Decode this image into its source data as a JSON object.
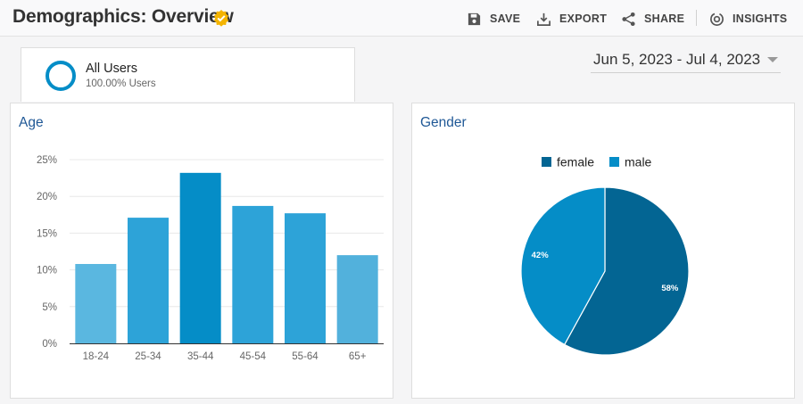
{
  "header": {
    "title": "Demographics: Overview",
    "tools": [
      {
        "label": "SAVE",
        "icon": "save-icon"
      },
      {
        "label": "EXPORT",
        "icon": "export-icon"
      },
      {
        "label": "SHARE",
        "icon": "share-icon"
      },
      {
        "label": "INSIGHTS",
        "icon": "insights-icon"
      }
    ]
  },
  "segment": {
    "name": "All Users",
    "percent": "100.00% Users",
    "color": "#058dc7"
  },
  "date_range": "Jun 5, 2023 - Jul 4, 2023",
  "age_panel": {
    "title": "Age"
  },
  "gender_panel": {
    "title": "Gender"
  },
  "chart_data": [
    {
      "type": "bar",
      "title": "Age",
      "categories": [
        "18-24",
        "25-34",
        "35-44",
        "45-54",
        "55-64",
        "65+"
      ],
      "values": [
        10.8,
        17.1,
        23.2,
        18.7,
        17.7,
        12.0
      ],
      "y_ticks": [
        "0%",
        "5%",
        "10%",
        "15%",
        "20%",
        "25%"
      ],
      "ylim": [
        0,
        25
      ],
      "bar_colors": [
        "#5ab7e0",
        "#2da3d8",
        "#058dc7",
        "#2da3d8",
        "#2da3d8",
        "#52b1dc"
      ],
      "grid": true
    },
    {
      "type": "pie",
      "title": "Gender",
      "legend": [
        "female",
        "male"
      ],
      "legend_placement": "top",
      "slices": [
        {
          "label": "female",
          "value": 58,
          "display": "58%",
          "color": "#036593"
        },
        {
          "label": "male",
          "value": 42,
          "display": "42%",
          "color": "#058dc7"
        }
      ]
    }
  ]
}
